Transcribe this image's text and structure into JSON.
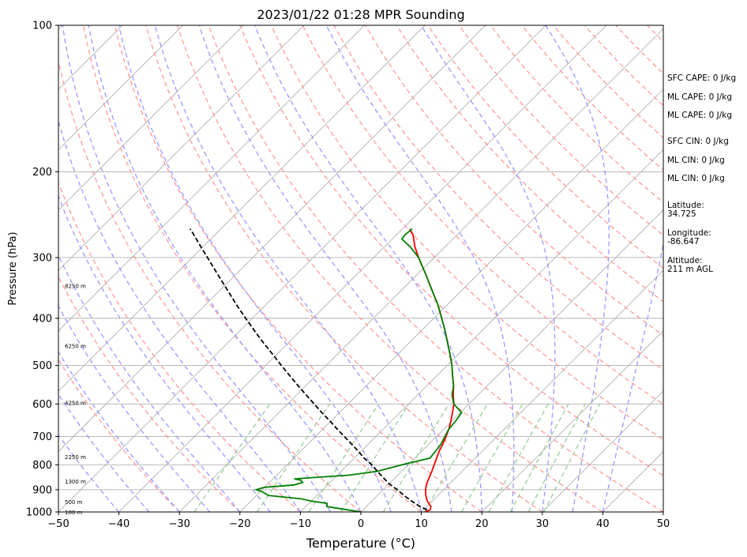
{
  "chart_data": {
    "type": "line",
    "title": "2023/01/22 01:28 MPR Sounding",
    "xlabel": "Temperature (°C)",
    "ylabel": "Pressure (hPa)",
    "xlim": [
      -50,
      50
    ],
    "ylim": [
      1000,
      100
    ],
    "y_scale": "log",
    "x_ticks": [
      -50,
      -40,
      -30,
      -20,
      -10,
      0,
      10,
      20,
      30,
      40,
      50
    ],
    "x_tick_labels": [
      "−50",
      "−40",
      "−30",
      "−20",
      "−10",
      "0",
      "10",
      "20",
      "30",
      "40",
      "50"
    ],
    "y_ticks": [
      1000,
      900,
      800,
      700,
      600,
      500,
      400,
      300,
      200,
      100
    ],
    "y_tick_labels": [
      "1000",
      "900",
      "800",
      "700",
      "600",
      "500",
      "400",
      "300",
      "200",
      "100"
    ],
    "grid": true,
    "colors": {
      "temperature": "#ff0000",
      "dewpoint": "#008000",
      "parcel": "#000000",
      "isotherm": "#b0b0b0",
      "dry_adiabat": "#ff9999",
      "moist_adiabat": "#9999ff",
      "mixing_ratio": "#99cc99"
    },
    "series": [
      {
        "kind": "temperature",
        "pressure": [
          1000,
          990,
          975,
          960,
          950,
          925,
          900,
          875,
          850,
          825,
          800,
          775,
          750,
          725,
          700,
          675,
          650,
          625,
          600,
          575,
          550,
          525,
          500,
          475,
          450,
          425,
          400,
          375,
          350,
          325,
          300,
          285,
          270,
          262
        ],
        "temp": [
          10.6,
          11.1,
          10.7,
          9.8,
          9.2,
          8.0,
          7.0,
          6.2,
          5.6,
          5.0,
          4.3,
          3.6,
          2.9,
          2.3,
          1.6,
          0.8,
          -0.2,
          -1.3,
          -2.5,
          -4.1,
          -5.6,
          -7.4,
          -9.2,
          -11.3,
          -13.6,
          -16.0,
          -18.7,
          -21.6,
          -25.0,
          -28.6,
          -32.6,
          -35.0,
          -37.2,
          -38.8
        ]
      },
      {
        "kind": "dewpoint",
        "pressure": [
          1000,
          990,
          975,
          960,
          950,
          940,
          925,
          910,
          900,
          890,
          880,
          870,
          860,
          855,
          840,
          825,
          800,
          775,
          750,
          725,
          700,
          675,
          650,
          625,
          600,
          575,
          550,
          525,
          500,
          475,
          450,
          425,
          400,
          375,
          350,
          325,
          300,
          285,
          275,
          270,
          262
        ],
        "dewpoint": [
          0.0,
          -2.5,
          -6.5,
          -7.0,
          -10.0,
          -12.0,
          -18.0,
          -19.5,
          -21.0,
          -20.0,
          -15.5,
          -14.5,
          -15.2,
          -16.5,
          -8.0,
          -4.0,
          -1.0,
          2.5,
          2.3,
          2.0,
          1.4,
          0.8,
          0.6,
          0.2,
          -2.5,
          -4.3,
          -5.6,
          -7.4,
          -9.2,
          -11.3,
          -13.6,
          -16.0,
          -18.7,
          -21.6,
          -25.0,
          -28.6,
          -32.6,
          -35.8,
          -38.4,
          -38.6,
          -38.4
        ]
      },
      {
        "kind": "parcel",
        "pressure": [
          990,
          975,
          950,
          925,
          900,
          875,
          850,
          825,
          800,
          775,
          750,
          725,
          700,
          675,
          650,
          625,
          600,
          575,
          550,
          525,
          500,
          475,
          450,
          425,
          400,
          375,
          350,
          325,
          300,
          285,
          270,
          262
        ],
        "temp": [
          10.6,
          8.9,
          6.6,
          4.4,
          2.3,
          0.0,
          -2.0,
          -4.0,
          -6.0,
          -8.4,
          -10.5,
          -12.8,
          -15.2,
          -17.7,
          -20.2,
          -22.9,
          -25.6,
          -28.4,
          -31.3,
          -34.3,
          -37.4,
          -40.6,
          -44.0,
          -47.5,
          -51.1,
          -54.9,
          -58.8,
          -63.0,
          -67.5,
          -70.4,
          -73.4,
          -75.1
        ]
      }
    ],
    "height_labels": [
      "8250 m",
      "6250 m",
      "4250 m",
      "2250 m",
      "1300 m",
      "500 m",
      "100 m"
    ],
    "annotations": [
      "SFC CAPE: 0 J/kg",
      "ML CAPE: 0 J/kg",
      "ML CAPE: 0 J/kg",
      "SFC CIN: 0 J/kg",
      "ML CIN: 0 J/kg",
      "ML CIN: 0 J/kg",
      "Latitude:",
      "34.725",
      "Longitude:",
      "-86.647",
      "Altitude:",
      "211 m AGL"
    ]
  }
}
